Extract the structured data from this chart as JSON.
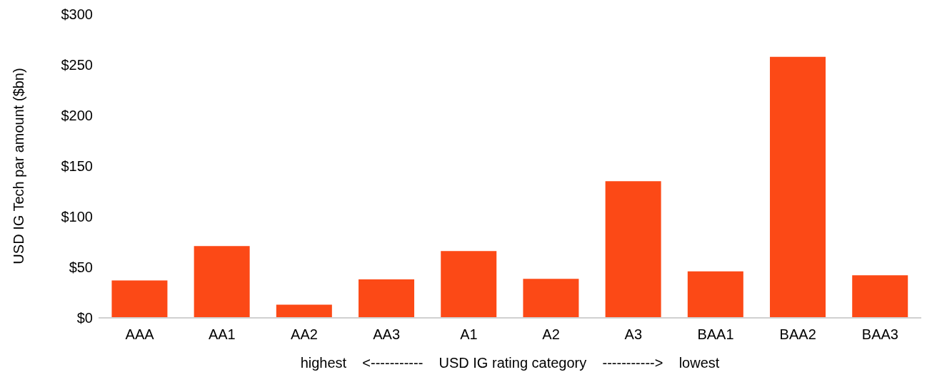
{
  "chart_data": {
    "type": "bar",
    "ylabel": "USD IG Tech par amount ($bn)",
    "xlabel": "highest    <-----------    USD IG rating category    ----------->    lowest",
    "categories": [
      "AAA",
      "AA1",
      "AA2",
      "AA3",
      "A1",
      "A2",
      "A3",
      "BAA1",
      "BAA2",
      "BAA3"
    ],
    "values": [
      37,
      71,
      13,
      38,
      66,
      38.5,
      135,
      46,
      258,
      42
    ],
    "color": "#fc4916",
    "ylim": [
      0,
      300
    ],
    "yticks": [
      {
        "value": 0,
        "label": "$0"
      },
      {
        "value": 50,
        "label": "$50"
      },
      {
        "value": 100,
        "label": "$100"
      },
      {
        "value": 150,
        "label": "$150"
      },
      {
        "value": 200,
        "label": "$200"
      },
      {
        "value": 250,
        "label": "$250"
      },
      {
        "value": 300,
        "label": "$300"
      }
    ],
    "grid": false,
    "legend": false
  }
}
